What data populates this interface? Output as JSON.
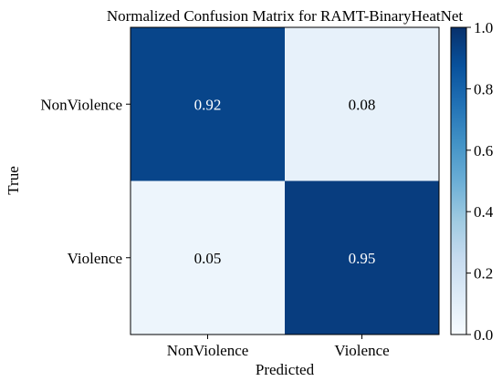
{
  "chart_data": {
    "type": "heatmap",
    "title": "Normalized Confusion Matrix for RAMT-BinaryHeatNet",
    "xlabel": "Predicted",
    "ylabel": "True",
    "x_categories": [
      "NonViolence",
      "Violence"
    ],
    "y_categories": [
      "NonViolence",
      "Violence"
    ],
    "values": [
      [
        0.92,
        0.08
      ],
      [
        0.05,
        0.95
      ]
    ],
    "cell_labels": [
      [
        "0.92",
        "0.08"
      ],
      [
        "0.05",
        "0.95"
      ]
    ],
    "colormap": "Blues",
    "colorbar": {
      "range": [
        0.0,
        1.0
      ],
      "ticks": [
        0.0,
        0.2,
        0.4,
        0.6,
        0.8,
        1.0
      ],
      "tick_labels": [
        "0.0",
        "0.2",
        "0.4",
        "0.6",
        "0.8",
        "1.0"
      ]
    },
    "colors": {
      "low": "#f7fbff",
      "high": "#08306b",
      "text_on_dark": "#ffffff",
      "text_on_light": "#000000"
    },
    "grid": false
  }
}
